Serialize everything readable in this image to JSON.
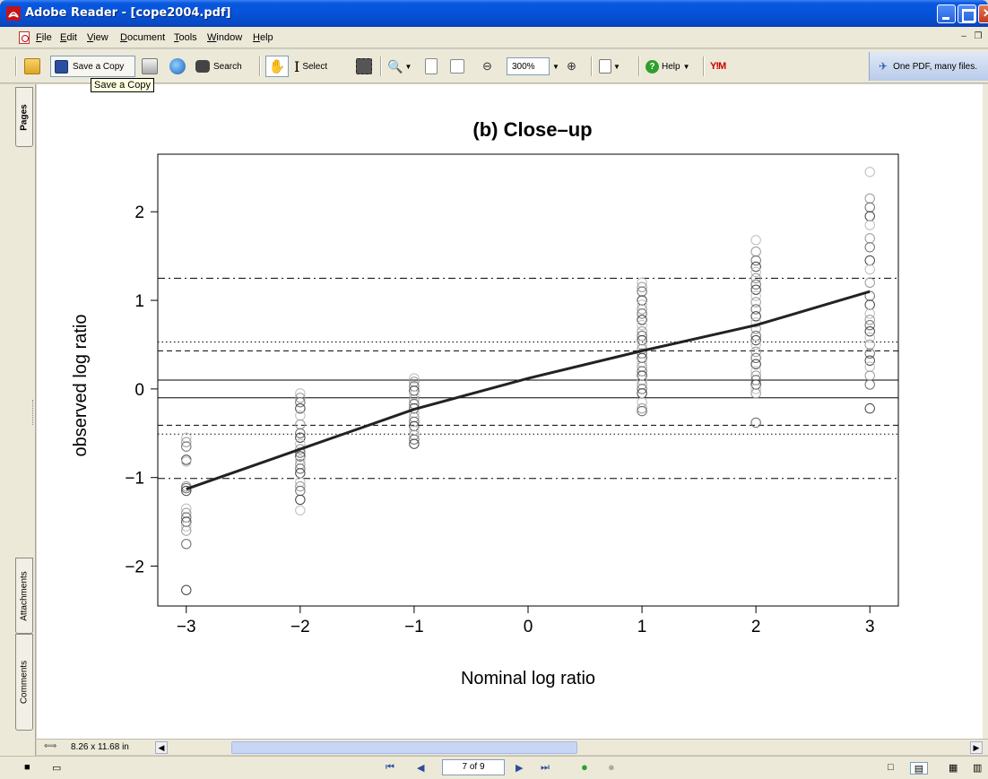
{
  "window": {
    "title": "Adobe Reader - [cope2004.pdf]"
  },
  "menu": [
    "File",
    "Edit",
    "View",
    "Document",
    "Tools",
    "Window",
    "Help"
  ],
  "toolbar": {
    "save_copy_label": "Save a Copy",
    "search_label": "Search",
    "select_label": "Select",
    "zoom_value": "300%",
    "help_label": "Help",
    "promo_label": "One PDF, many files.",
    "tooltip": "Save a Copy"
  },
  "nav_tabs": {
    "pages": "Pages",
    "attachments": "Attachments",
    "comments": "Comments"
  },
  "status": {
    "page_size": "8.26 x 11.68 in",
    "page_indicator": "7 of 9"
  },
  "chart_data": {
    "type": "scatter",
    "title": "(b) Close–up",
    "xlabel": "Nominal log ratio",
    "ylabel": "observed log ratio",
    "xlim": [
      -3.25,
      3.25
    ],
    "ylim": [
      -2.45,
      2.65
    ],
    "xticks": [
      -3,
      -2,
      -1,
      0,
      1,
      2,
      3
    ],
    "yticks": [
      -2,
      -1,
      0,
      1,
      2
    ],
    "xtick_labels": [
      "−3",
      "−2",
      "−1",
      "0",
      "1",
      "2",
      "3"
    ],
    "ytick_labels": [
      "−2",
      "−1",
      "0",
      "1",
      "2"
    ],
    "points": [
      {
        "x": -3,
        "y": [
          -0.55,
          -0.6,
          -0.65,
          -0.8,
          -0.82,
          -1.1,
          -1.12,
          -1.15,
          -1.35,
          -1.4,
          -1.45,
          -1.5,
          -1.55,
          -1.6,
          -1.75,
          -2.27
        ]
      },
      {
        "x": -2,
        "y": [
          -0.05,
          -0.1,
          -0.15,
          -0.22,
          -0.3,
          -0.4,
          -0.5,
          -0.55,
          -0.62,
          -0.68,
          -0.72,
          -0.76,
          -0.8,
          -0.85,
          -0.9,
          -0.95,
          -1.05,
          -1.1,
          -1.15,
          -1.25,
          -1.37
        ]
      },
      {
        "x": -1,
        "y": [
          0.12,
          0.08,
          0.03,
          -0.02,
          -0.07,
          -0.12,
          -0.17,
          -0.22,
          -0.27,
          -0.32,
          -0.37,
          -0.42,
          -0.47,
          -0.52,
          -0.57,
          -0.62
        ]
      },
      {
        "x": 1,
        "y": [
          1.2,
          1.15,
          1.1,
          1.0,
          0.95,
          0.9,
          0.85,
          0.78,
          0.72,
          0.65,
          0.6,
          0.55,
          0.5,
          0.45,
          0.4,
          0.35,
          0.3,
          0.25,
          0.2,
          0.15,
          0.1,
          0.05,
          0.0,
          -0.05,
          -0.15,
          -0.22,
          -0.25
        ]
      },
      {
        "x": 2,
        "y": [
          1.68,
          1.55,
          1.45,
          1.38,
          1.32,
          1.25,
          1.18,
          1.12,
          1.05,
          0.98,
          0.9,
          0.82,
          0.75,
          0.68,
          0.6,
          0.55,
          0.5,
          0.42,
          0.35,
          0.28,
          0.2,
          0.15,
          0.1,
          0.05,
          0.0,
          -0.05,
          -0.38
        ]
      },
      {
        "x": 3,
        "y": [
          2.45,
          2.15,
          2.05,
          1.95,
          1.85,
          1.7,
          1.6,
          1.45,
          1.35,
          1.2,
          1.05,
          0.95,
          0.85,
          0.78,
          0.72,
          0.65,
          0.58,
          0.5,
          0.4,
          0.32,
          0.25,
          0.15,
          0.05,
          -0.22
        ]
      }
    ],
    "fit_line": {
      "x": [
        -3,
        -2,
        -1,
        0,
        1,
        2,
        3
      ],
      "y": [
        -1.13,
        -0.68,
        -0.23,
        0.12,
        0.43,
        0.72,
        1.1
      ]
    },
    "reference_lines": [
      {
        "y": 0.1,
        "style": "solid"
      },
      {
        "y": -0.1,
        "style": "solid"
      },
      {
        "y": 0.43,
        "style": "dashed"
      },
      {
        "y": -0.41,
        "style": "dashed"
      },
      {
        "y": 0.53,
        "style": "dotted"
      },
      {
        "y": -0.51,
        "style": "dotted"
      },
      {
        "y": 1.25,
        "style": "dashdot"
      },
      {
        "y": -1.01,
        "style": "dashdot"
      }
    ]
  }
}
